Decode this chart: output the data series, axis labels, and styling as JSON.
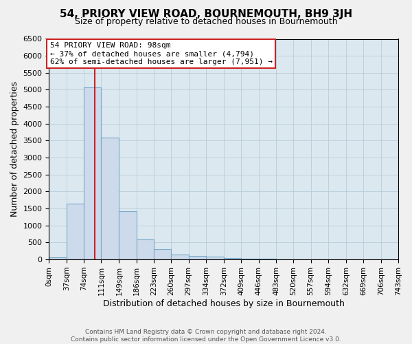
{
  "title": "54, PRIORY VIEW ROAD, BOURNEMOUTH, BH9 3JH",
  "subtitle": "Size of property relative to detached houses in Bournemouth",
  "xlabel": "Distribution of detached houses by size in Bournemouth",
  "ylabel": "Number of detached properties",
  "footer_lines": [
    "Contains HM Land Registry data © Crown copyright and database right 2024.",
    "Contains public sector information licensed under the Open Government Licence v3.0."
  ],
  "bin_edges": [
    0,
    37,
    74,
    111,
    149,
    186,
    223,
    260,
    297,
    334,
    372,
    409,
    446,
    483,
    520,
    557,
    594,
    632,
    669,
    706,
    743
  ],
  "bin_labels": [
    "0sqm",
    "37sqm",
    "74sqm",
    "111sqm",
    "149sqm",
    "186sqm",
    "223sqm",
    "260sqm",
    "297sqm",
    "334sqm",
    "372sqm",
    "409sqm",
    "446sqm",
    "483sqm",
    "520sqm",
    "557sqm",
    "594sqm",
    "632sqm",
    "669sqm",
    "706sqm",
    "743sqm"
  ],
  "bar_heights": [
    60,
    1640,
    5080,
    3600,
    1420,
    580,
    300,
    150,
    100,
    80,
    50,
    30,
    20,
    0,
    0,
    0,
    0,
    0,
    0,
    0
  ],
  "bar_color": "#ccdaeb",
  "bar_edge_color": "#7aaac8",
  "ylim": [
    0,
    6500
  ],
  "yticks": [
    0,
    500,
    1000,
    1500,
    2000,
    2500,
    3000,
    3500,
    4000,
    4500,
    5000,
    5500,
    6000,
    6500
  ],
  "property_size": 98,
  "property_label": "54 PRIORY VIEW ROAD: 98sqm",
  "annotation_line1": "← 37% of detached houses are smaller (4,794)",
  "annotation_line2": "62% of semi-detached houses are larger (7,951) →",
  "vline_color": "#cc2222",
  "vline_x": 98,
  "annotation_box_color": "#ffffff",
  "annotation_box_edge": "#cc2222",
  "background_color": "#f0f0f0",
  "plot_background": "#dce8f0",
  "grid_color": "#b8ccd8"
}
